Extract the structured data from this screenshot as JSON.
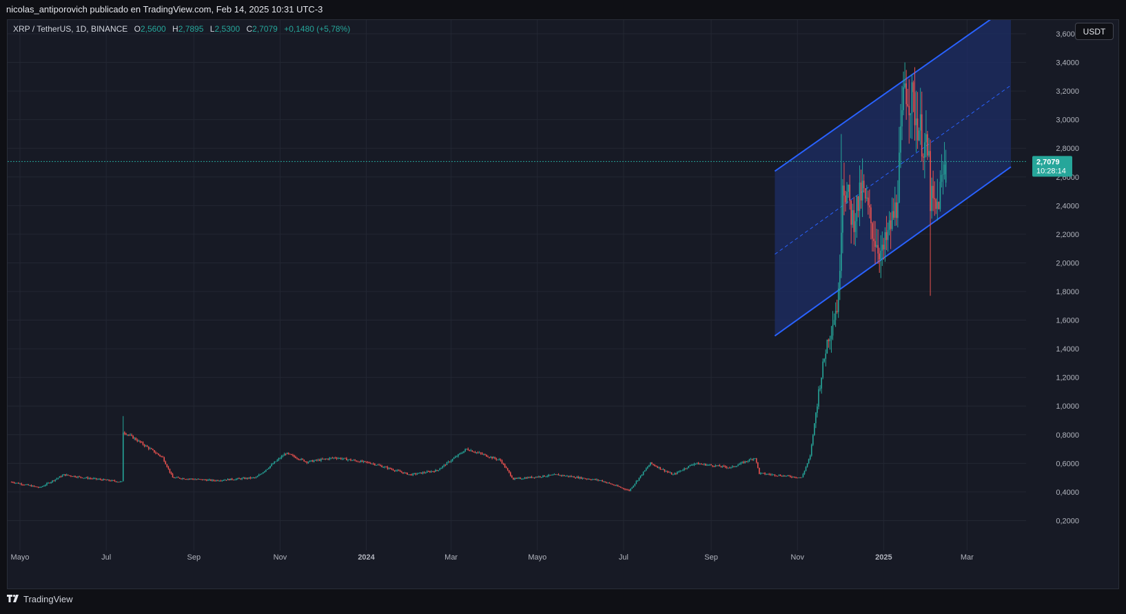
{
  "header": {
    "publisher": "nicolas_antiporovich publicado en TradingView.com, Feb 14, 2025 10:31 UTC-3"
  },
  "legend": {
    "symbol": "XRP / TetherUS, 1D, BINANCE",
    "o_label": "O",
    "o": "2,5600",
    "h_label": "H",
    "h": "2,7895",
    "l_label": "L",
    "l": "2,5300",
    "c_label": "C",
    "c": "2,7079",
    "change": "+0,1480 (+5,78%)"
  },
  "currency": "USDT",
  "price_tag": {
    "price": "2,7079",
    "countdown": "10:28:14"
  },
  "footer": {
    "brand": "TradingView"
  },
  "colors": {
    "up": "#26a69a",
    "down": "#ef5350",
    "channel": "#2962ff",
    "channel_fill": "#1e2e66",
    "price_line": "#26a69a"
  },
  "chart_data": {
    "type": "candlestick",
    "symbol": "XRP / TetherUS",
    "interval": "1D",
    "exchange": "BINANCE",
    "y_ticks": [
      "0,2000",
      "0,4000",
      "0,6000",
      "0,8000",
      "1,0000",
      "1,2000",
      "1,4000",
      "1,6000",
      "1,8000",
      "2,0000",
      "2,2000",
      "2,4000",
      "2,6000",
      "2,8000",
      "3,0000",
      "3,2000",
      "3,4000",
      "3,6000"
    ],
    "ylim": [
      0.0,
      3.78
    ],
    "x_range": [
      "2023-04-25",
      "2025-04-05"
    ],
    "x_ticks": [
      {
        "label": "Mayo",
        "date": "2023-05-01"
      },
      {
        "label": "Jul",
        "date": "2023-07-01"
      },
      {
        "label": "Sep",
        "date": "2023-09-01"
      },
      {
        "label": "Nov",
        "date": "2023-11-01"
      },
      {
        "label": "2024",
        "date": "2024-01-01"
      },
      {
        "label": "Mar",
        "date": "2024-03-01"
      },
      {
        "label": "Mayo",
        "date": "2024-05-01"
      },
      {
        "label": "Jul",
        "date": "2024-07-01"
      },
      {
        "label": "Sep",
        "date": "2024-09-01"
      },
      {
        "label": "Nov",
        "date": "2024-11-01"
      },
      {
        "label": "2025",
        "date": "2025-01-01"
      },
      {
        "label": "Mar",
        "date": "2025-03-01"
      }
    ],
    "current_price": 2.7079,
    "price_path": [
      {
        "date": "2023-04-25",
        "close": 0.47
      },
      {
        "date": "2023-05-15",
        "close": 0.43
      },
      {
        "date": "2023-06-01",
        "close": 0.52
      },
      {
        "date": "2023-06-15",
        "close": 0.5
      },
      {
        "date": "2023-07-12",
        "close": 0.47
      },
      {
        "date": "2023-07-13",
        "close": 0.82
      },
      {
        "date": "2023-07-20",
        "close": 0.78
      },
      {
        "date": "2023-08-10",
        "close": 0.64
      },
      {
        "date": "2023-08-17",
        "close": 0.5
      },
      {
        "date": "2023-09-15",
        "close": 0.48
      },
      {
        "date": "2023-10-15",
        "close": 0.5
      },
      {
        "date": "2023-11-05",
        "close": 0.67
      },
      {
        "date": "2023-11-20",
        "close": 0.61
      },
      {
        "date": "2023-12-10",
        "close": 0.64
      },
      {
        "date": "2024-01-05",
        "close": 0.6
      },
      {
        "date": "2024-02-01",
        "close": 0.52
      },
      {
        "date": "2024-02-20",
        "close": 0.55
      },
      {
        "date": "2024-03-12",
        "close": 0.7
      },
      {
        "date": "2024-04-05",
        "close": 0.62
      },
      {
        "date": "2024-04-14",
        "close": 0.49
      },
      {
        "date": "2024-05-15",
        "close": 0.52
      },
      {
        "date": "2024-06-15",
        "close": 0.48
      },
      {
        "date": "2024-07-05",
        "close": 0.41
      },
      {
        "date": "2024-07-20",
        "close": 0.6
      },
      {
        "date": "2024-08-05",
        "close": 0.52
      },
      {
        "date": "2024-08-20",
        "close": 0.6
      },
      {
        "date": "2024-09-15",
        "close": 0.57
      },
      {
        "date": "2024-10-02",
        "close": 0.64
      },
      {
        "date": "2024-10-05",
        "close": 0.53
      },
      {
        "date": "2024-11-04",
        "close": 0.5
      },
      {
        "date": "2024-11-10",
        "close": 0.65
      },
      {
        "date": "2024-11-16",
        "close": 1.1
      },
      {
        "date": "2024-11-22",
        "close": 1.45
      },
      {
        "date": "2024-11-30",
        "close": 1.75
      },
      {
        "date": "2024-12-03",
        "close": 2.6
      },
      {
        "date": "2024-12-10",
        "close": 2.3
      },
      {
        "date": "2024-12-17",
        "close": 2.5
      },
      {
        "date": "2024-12-25",
        "close": 2.2
      },
      {
        "date": "2024-12-31",
        "close": 2.05
      },
      {
        "date": "2025-01-10",
        "close": 2.4
      },
      {
        "date": "2025-01-16",
        "close": 3.25
      },
      {
        "date": "2025-01-22",
        "close": 3.1
      },
      {
        "date": "2025-02-02",
        "close": 2.7
      },
      {
        "date": "2025-02-03",
        "close": 2.45
      },
      {
        "date": "2025-02-07",
        "close": 2.35
      },
      {
        "date": "2025-02-14",
        "close": 2.71
      }
    ],
    "notable_candles": [
      {
        "date": "2023-07-13",
        "high": 0.93
      },
      {
        "date": "2024-12-02",
        "high": 2.9
      },
      {
        "date": "2025-01-16",
        "high": 3.4
      },
      {
        "date": "2025-02-03",
        "low": 1.77
      },
      {
        "date": "2025-02-14",
        "open": 2.56,
        "high": 2.7895,
        "low": 2.53,
        "close": 2.7079
      }
    ],
    "channel": {
      "lower": [
        {
          "date": "2024-10-16",
          "value": 1.49
        },
        {
          "date": "2025-04-01",
          "value": 2.67
        }
      ],
      "upper": [
        {
          "date": "2024-10-16",
          "value": 2.64
        },
        {
          "date": "2025-04-01",
          "value": 3.8
        }
      ],
      "middle": [
        {
          "date": "2024-10-16",
          "value": 2.06
        },
        {
          "date": "2025-04-01",
          "value": 3.24
        }
      ]
    }
  }
}
